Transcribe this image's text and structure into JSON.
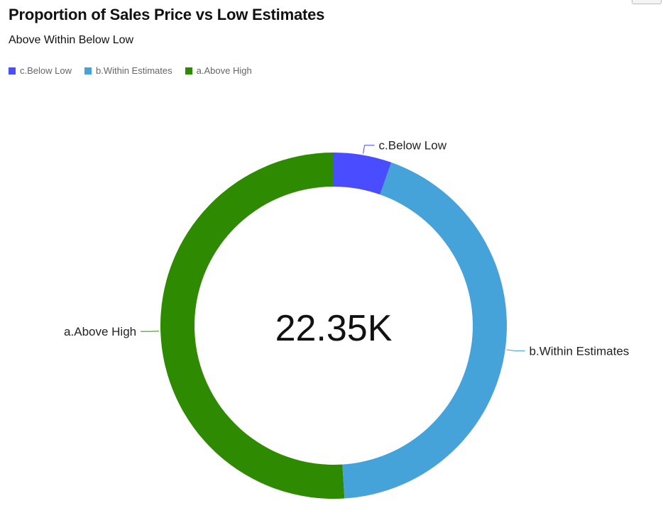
{
  "title": "Proportion of Sales Price vs Low Estimates",
  "subtitle": "Above Within Below Low",
  "chart_data": {
    "type": "pie",
    "variant": "donut",
    "title": "Proportion of Sales Price vs Low Estimates",
    "subtitle": "Above Within Below Low",
    "center_label": "22.35K",
    "legend_position": "top-left",
    "slices": [
      {
        "label": "c.Below Low",
        "percent": 5.4,
        "color": "#4a4cff"
      },
      {
        "label": "b.Within Estimates",
        "percent": 43.6,
        "color": "#45a3d9"
      },
      {
        "label": "a.Above High",
        "percent": 51.0,
        "color": "#2e8a00"
      }
    ]
  }
}
